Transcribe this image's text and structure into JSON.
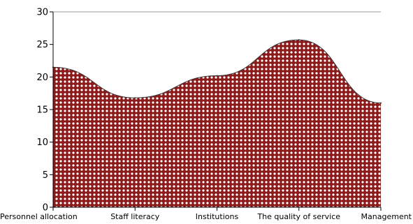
{
  "chart_data": {
    "type": "area",
    "categories": [
      "Personnel  allocation",
      "Staff  literacy",
      "Institutions",
      "The  quality  of  service",
      "Management"
    ],
    "values": [
      21.5,
      16.8,
      20.2,
      25.7,
      16.0
    ],
    "ylim": [
      0,
      30
    ],
    "yticks": [
      0,
      5,
      10,
      15,
      20,
      25,
      30
    ],
    "grid": false,
    "fill_color": "#8b1a1a",
    "dot_color": "#ffffff",
    "line_color": "#333333",
    "axis_color": "#000000"
  }
}
